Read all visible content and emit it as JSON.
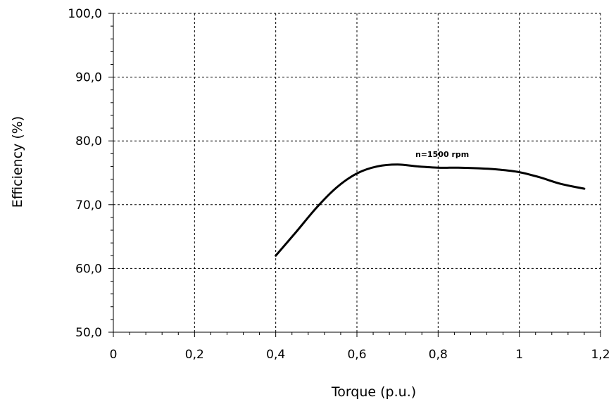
{
  "chart_data": {
    "type": "line",
    "title": "",
    "xlabel": "Torque (p.u.)",
    "ylabel": "Efficiency (%)",
    "xlim": [
      0,
      1.2
    ],
    "ylim": [
      50,
      100
    ],
    "x_ticks": [
      0,
      0.2,
      0.4,
      0.6,
      0.8,
      1.0,
      1.2
    ],
    "x_tick_labels": [
      "0",
      "0,2",
      "0,4",
      "0,6",
      "0,8",
      "1",
      "1,2"
    ],
    "y_ticks": [
      50,
      60,
      70,
      80,
      90,
      100
    ],
    "y_tick_labels": [
      "50,0",
      "60,0",
      "70,0",
      "80,0",
      "90,0",
      "100,0"
    ],
    "grid": true,
    "grid_style": "dashed",
    "annotations": [
      {
        "text": "n=1500 rpm",
        "x": 0.81,
        "y": 77.5
      }
    ],
    "series": [
      {
        "color": "#000000",
        "x": [
          0.4,
          0.45,
          0.5,
          0.55,
          0.6,
          0.65,
          0.7,
          0.75,
          0.8,
          0.85,
          0.9,
          0.95,
          1.0,
          1.05,
          1.1,
          1.16
        ],
        "y": [
          62.0,
          65.7,
          69.5,
          72.7,
          74.9,
          76.0,
          76.3,
          76.0,
          75.8,
          75.8,
          75.7,
          75.5,
          75.1,
          74.3,
          73.3,
          72.5
        ]
      }
    ]
  }
}
